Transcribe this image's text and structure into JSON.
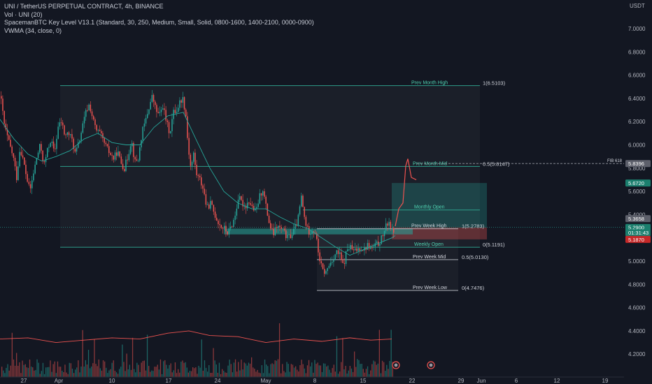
{
  "header": {
    "symbol_line": "UNI / TetherUS PERPETUAL CONTRACT, 4h, BINANCE",
    "indicators": [
      "Vol · UNI (20)",
      "SpacemanBTC Key Level V13.1 (Standard, 30, 250, Medium, Small, Solid, 0800-1600, 1400-2100, 0000-0900)",
      "VWMA (34, close, 0)"
    ]
  },
  "colors": {
    "background": "#131722",
    "up": "#26a69a",
    "down": "#ef5350",
    "vwma": "#26a69a",
    "volume_ma": "#ef5350",
    "level_line": "#2e9e8a",
    "level_text": "#4fd1b0",
    "fib_white": "#d1d4dc",
    "grid": "#1e222d"
  },
  "chart_data": {
    "type": "candlestick",
    "instrument": "UNI / TetherUS PERPETUAL CONTRACT",
    "timeframe": "4h",
    "exchange": "BINANCE",
    "price_axis": {
      "unit": "USDT",
      "ticks": [
        "7.0000",
        "6.8000",
        "6.6000",
        "6.4000",
        "6.2000",
        "6.0000",
        "5.8000",
        "5.6000",
        "5.4000",
        "5.2000",
        "5.0000",
        "4.8000",
        "4.6000",
        "4.4000",
        "4.2000"
      ],
      "ylim": [
        4.13,
        7.2
      ]
    },
    "time_axis": {
      "ticks": [
        "27",
        "Apr",
        "10",
        "17",
        "24",
        "May",
        "8",
        "15",
        "22",
        "29",
        "Jun",
        "6",
        "12",
        "19"
      ]
    },
    "grid": false,
    "price_path": [
      [
        0,
        6.42
      ],
      [
        6,
        6.15
      ],
      [
        12,
        6.02
      ],
      [
        18,
        5.9
      ],
      [
        23,
        5.72
      ],
      [
        28,
        5.98
      ],
      [
        33,
        5.85
      ],
      [
        38,
        5.7
      ],
      [
        42,
        5.6
      ],
      [
        47,
        5.75
      ],
      [
        52,
        5.9
      ],
      [
        57,
        6.0
      ],
      [
        62,
        5.82
      ],
      [
        67,
        5.95
      ],
      [
        72,
        6.05
      ],
      [
        77,
        5.92
      ],
      [
        82,
        6.15
      ],
      [
        87,
        6.2
      ],
      [
        92,
        6.08
      ],
      [
        97,
        6.1
      ],
      [
        102,
        6.05
      ],
      [
        107,
        5.92
      ],
      [
        112,
        6.02
      ],
      [
        117,
        6.15
      ],
      [
        122,
        6.28
      ],
      [
        127,
        6.35
      ],
      [
        132,
        6.22
      ],
      [
        137,
        6.12
      ],
      [
        142,
        6.1
      ],
      [
        147,
        6.03
      ],
      [
        152,
        5.97
      ],
      [
        157,
        5.92
      ],
      [
        162,
        5.88
      ],
      [
        167,
        5.95
      ],
      [
        172,
        5.85
      ],
      [
        177,
        5.8
      ],
      [
        182,
        5.9
      ],
      [
        187,
        6.05
      ],
      [
        192,
        5.85
      ],
      [
        197,
        5.88
      ],
      [
        202,
        6.1
      ],
      [
        207,
        6.2
      ],
      [
        212,
        6.32
      ],
      [
        217,
        6.42
      ],
      [
        222,
        6.3
      ],
      [
        227,
        6.25
      ],
      [
        232,
        6.34
      ],
      [
        237,
        6.2
      ],
      [
        242,
        6.1
      ],
      [
        247,
        6.28
      ],
      [
        252,
        6.3
      ],
      [
        257,
        6.38
      ],
      [
        261,
        6.4
      ],
      [
        265,
        6.25
      ],
      [
        268,
        6.0
      ],
      [
        272,
        5.8
      ],
      [
        276,
        5.92
      ],
      [
        280,
        5.75
      ],
      [
        285,
        5.7
      ],
      [
        290,
        5.62
      ],
      [
        295,
        5.45
      ],
      [
        300,
        5.5
      ],
      [
        305,
        5.42
      ],
      [
        310,
        5.35
      ],
      [
        315,
        5.3
      ],
      [
        320,
        5.28
      ],
      [
        325,
        5.24
      ],
      [
        330,
        5.3
      ],
      [
        335,
        5.38
      ],
      [
        340,
        5.55
      ],
      [
        345,
        5.5
      ],
      [
        350,
        5.47
      ],
      [
        355,
        5.52
      ],
      [
        360,
        5.46
      ],
      [
        365,
        5.42
      ],
      [
        370,
        5.55
      ],
      [
        375,
        5.62
      ],
      [
        380,
        5.45
      ],
      [
        385,
        5.3
      ],
      [
        390,
        5.23
      ],
      [
        395,
        5.3
      ],
      [
        400,
        5.28
      ],
      [
        405,
        5.25
      ],
      [
        410,
        5.2
      ],
      [
        415,
        5.22
      ],
      [
        420,
        5.27
      ],
      [
        425,
        5.35
      ],
      [
        430,
        5.55
      ],
      [
        435,
        5.35
      ],
      [
        440,
        5.25
      ],
      [
        445,
        5.27
      ],
      [
        450,
        5.25
      ],
      [
        455,
        5.05
      ],
      [
        460,
        4.92
      ],
      [
        465,
        4.9
      ],
      [
        470,
        4.97
      ],
      [
        475,
        5.02
      ],
      [
        480,
        5.08
      ],
      [
        485,
        5.05
      ],
      [
        490,
        4.95
      ],
      [
        495,
        5.1
      ],
      [
        500,
        5.12
      ],
      [
        505,
        5.08
      ],
      [
        510,
        5.1
      ],
      [
        515,
        5.12
      ],
      [
        520,
        5.1
      ],
      [
        525,
        5.14
      ],
      [
        530,
        5.1
      ],
      [
        535,
        5.13
      ],
      [
        540,
        5.15
      ],
      [
        545,
        5.2
      ],
      [
        550,
        5.28
      ],
      [
        555,
        5.35
      ],
      [
        560,
        5.25
      ],
      [
        565,
        5.3
      ]
    ],
    "projection_path": [
      [
        565,
        5.3
      ],
      [
        570,
        5.45
      ],
      [
        576,
        5.5
      ],
      [
        580,
        5.82
      ],
      [
        583,
        5.88
      ],
      [
        588,
        5.72
      ],
      [
        595,
        5.7
      ]
    ],
    "vwma_path": [
      [
        0,
        6.22
      ],
      [
        20,
        6.05
      ],
      [
        40,
        5.92
      ],
      [
        60,
        5.86
      ],
      [
        80,
        5.9
      ],
      [
        100,
        5.95
      ],
      [
        120,
        6.05
      ],
      [
        140,
        6.1
      ],
      [
        160,
        6.02
      ],
      [
        180,
        6.0
      ],
      [
        200,
        6.0
      ],
      [
        220,
        6.15
      ],
      [
        240,
        6.25
      ],
      [
        262,
        6.28
      ],
      [
        280,
        6.05
      ],
      [
        300,
        5.8
      ],
      [
        320,
        5.6
      ],
      [
        340,
        5.5
      ],
      [
        360,
        5.45
      ],
      [
        380,
        5.45
      ],
      [
        400,
        5.38
      ],
      [
        420,
        5.32
      ],
      [
        440,
        5.28
      ],
      [
        460,
        5.2
      ],
      [
        480,
        5.12
      ],
      [
        500,
        5.05
      ],
      [
        520,
        5.1
      ],
      [
        540,
        5.15
      ],
      [
        560,
        5.2
      ],
      [
        565,
        5.22
      ]
    ],
    "volume_ma_path": [
      [
        0,
        4.33
      ],
      [
        40,
        4.34
      ],
      [
        80,
        4.3
      ],
      [
        120,
        4.32
      ],
      [
        160,
        4.34
      ],
      [
        200,
        4.33
      ],
      [
        240,
        4.38
      ],
      [
        270,
        4.4
      ],
      [
        300,
        4.36
      ],
      [
        340,
        4.35
      ],
      [
        380,
        4.3
      ],
      [
        420,
        4.33
      ],
      [
        460,
        4.31
      ],
      [
        500,
        4.34
      ],
      [
        530,
        4.32
      ],
      [
        560,
        4.33
      ]
    ],
    "levels": [
      {
        "label": "Prev Month High",
        "value": "1(6.5103)",
        "price": 6.51
      },
      {
        "label": "Prev Month Mid",
        "value": "0.5(5.8147)",
        "price": 5.8147
      },
      {
        "label": "Monthly Open",
        "value": "",
        "price": 5.44
      },
      {
        "label": "Prev Week High",
        "value": "1(5.2783)",
        "price": 5.2783
      },
      {
        "label": "Weekly Open",
        "value": "0(5.1191)",
        "price": 5.1191
      },
      {
        "label": "Prev Week Mid",
        "value": "0.5(5.0130)",
        "price": 5.013
      },
      {
        "label": "Prev Week Low",
        "value": "0(4.7476)",
        "price": 4.7476
      }
    ],
    "fib_label": "FIB 618",
    "price_tags": [
      {
        "text": "5.8396",
        "price": 5.8396,
        "color": "#5d606b"
      },
      {
        "text": "5.6720",
        "price": 5.672,
        "color": "#1b7f6e"
      },
      {
        "text": "5.3658",
        "price": 5.3658,
        "color": "#5d606b"
      },
      {
        "text": "5.2900",
        "price": 5.29,
        "color": "#1b7f6e"
      },
      {
        "text": "01:31:43",
        "price": 5.245,
        "color": "#1b7f6e"
      },
      {
        "text": "5.1870",
        "price": 5.187,
        "color": "#c62828"
      }
    ]
  }
}
